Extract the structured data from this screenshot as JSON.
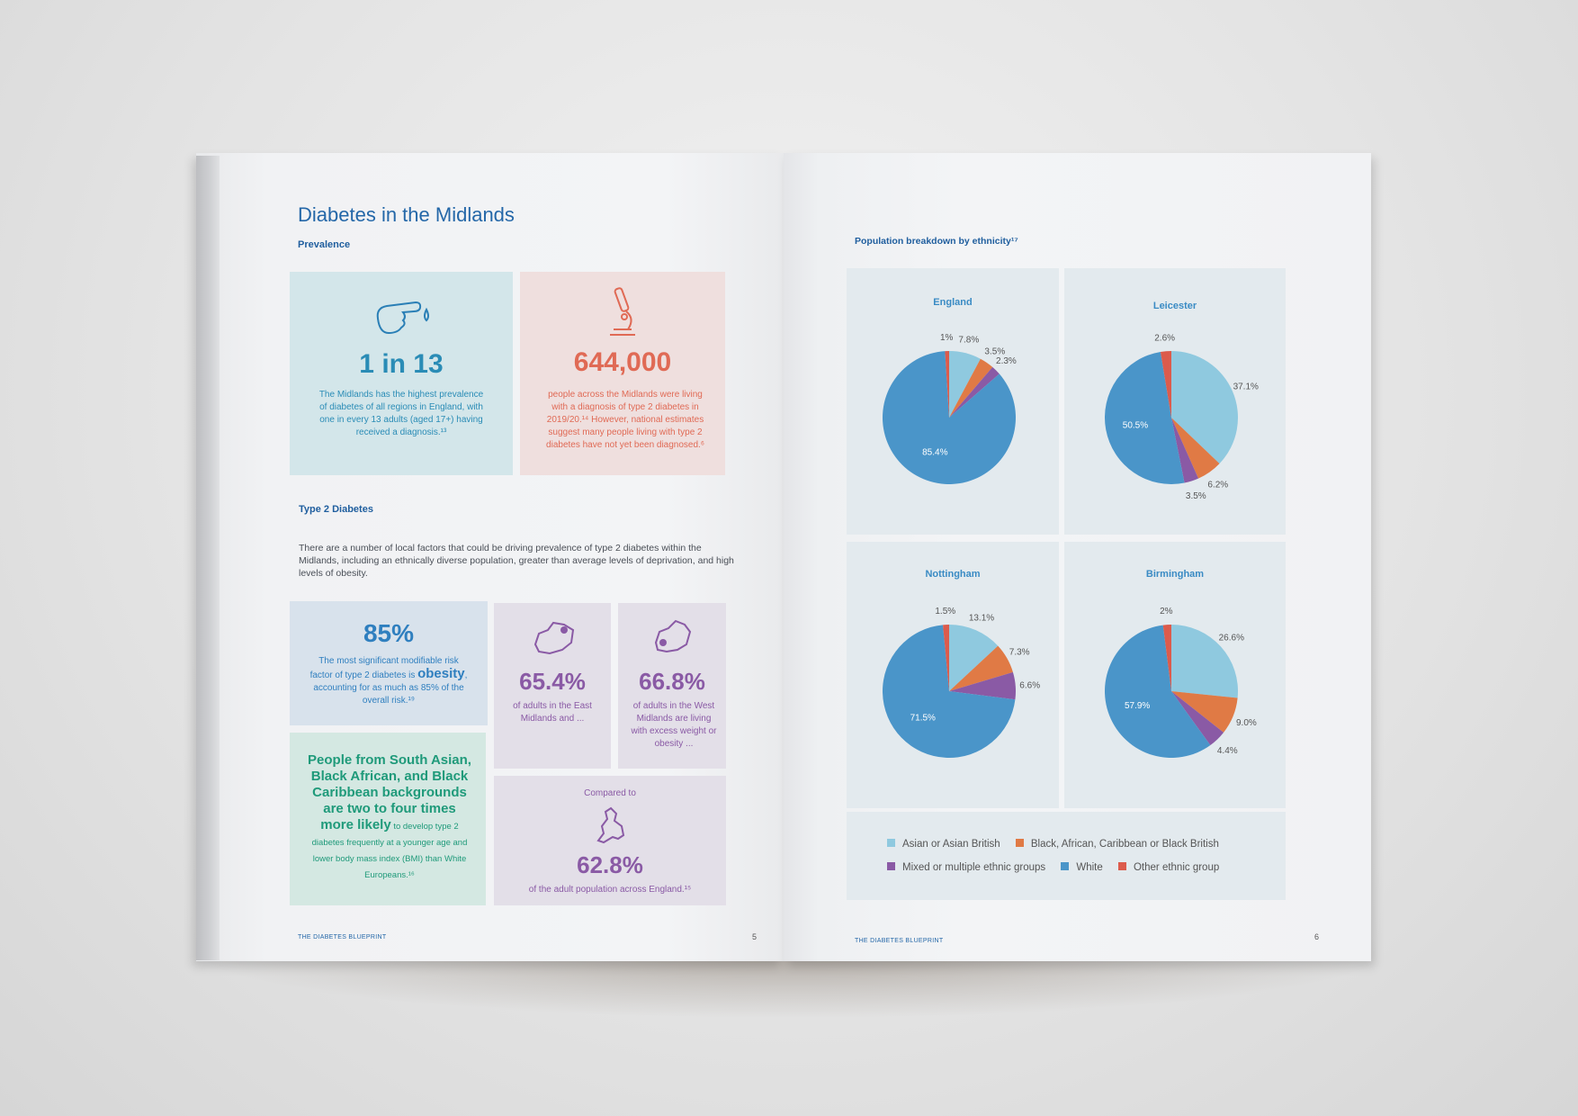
{
  "left_page": {
    "title": "Diabetes in the Midlands",
    "prevalence_heading": "Prevalence",
    "stat_1": {
      "value": "1 in 13",
      "text": "The Midlands has the highest prevalence of diabetes of all regions in England, with one in every 13 adults (aged 17+) having received a diagnosis.¹³",
      "icon": "finger-drop-icon",
      "color": "#2a8cb6"
    },
    "stat_2": {
      "value": "644,000",
      "text": "people across the Midlands were living with a diagnosis of type 2 diabetes in 2019/20.¹⁴ However, national estimates suggest many people living with type 2 diabetes have not yet been diagnosed.⁶",
      "icon": "microscope-icon",
      "color": "#e06a55"
    },
    "type2_heading": "Type 2 Diabetes",
    "type2_paragraph": "There are a number of local factors that could be driving prevalence of type 2 diabetes within the Midlands, including an ethnically diverse population, greater than average levels of deprivation, and high levels of obesity.",
    "stat_3": {
      "value": "85%",
      "text_1": "The most significant modifiable risk factor of type 2 diabetes is",
      "emphasis": "obesity",
      "text_2": ", accounting for as much as 85% of the overall risk.¹⁹",
      "color": "#2f7fbf"
    },
    "stat_4": {
      "value": "65.4%",
      "text": "of adults in the East Midlands and ...",
      "icon": "east-midlands-map-icon",
      "color": "#8a5aa5"
    },
    "stat_5": {
      "value": "66.8%",
      "text": "of adults in the West Midlands are living with excess weight or obesity ...",
      "icon": "west-midlands-map-icon",
      "color": "#8a5aa5"
    },
    "stat_6": {
      "bold": "People from South Asian, Black African, and Black Caribbean backgrounds are two to four times more likely",
      "text": " to develop type 2 diabetes frequently at a younger age and lower body mass index (BMI) than White Europeans.¹⁶",
      "color": "#1f9a7a"
    },
    "stat_7": {
      "label": "Compared to",
      "value": "62.8%",
      "text": "of the adult population across England.¹⁵",
      "icon": "england-map-icon",
      "color": "#8a5aa5"
    },
    "footer": "THE DIABETES BLUEPRINT",
    "page_number": "5"
  },
  "right_page": {
    "heading": "Population breakdown by ethnicity¹⁷",
    "footer": "THE DIABETES BLUEPRINT",
    "page_number": "6"
  },
  "chart_data": [
    {
      "type": "pie",
      "title": "England",
      "categories": [
        "Asian or Asian British",
        "Black, African, Caribbean or Black British",
        "Mixed or multiple ethnic groups",
        "White",
        "Other ethnic group"
      ],
      "values": [
        7.8,
        3.5,
        2.3,
        85.4,
        1
      ],
      "labels": [
        "7.8%",
        "3.5%",
        "2.3%",
        "85.4%",
        "1%"
      ]
    },
    {
      "type": "pie",
      "title": "Leicester",
      "categories": [
        "Asian or Asian British",
        "Black, African, Caribbean or Black British",
        "Mixed or multiple ethnic groups",
        "White",
        "Other ethnic group"
      ],
      "values": [
        37.1,
        6.2,
        3.5,
        50.5,
        2.6
      ],
      "labels": [
        "37.1%",
        "6.2%",
        "3.5%",
        "50.5%",
        "2.6%"
      ]
    },
    {
      "type": "pie",
      "title": "Nottingham",
      "categories": [
        "Asian or Asian British",
        "Black, African, Caribbean or Black British",
        "Mixed or multiple ethnic groups",
        "White",
        "Other ethnic group"
      ],
      "values": [
        13.1,
        7.3,
        6.6,
        71.5,
        1.5
      ],
      "labels": [
        "13.1%",
        "7.3%",
        "6.6%",
        "71.5%",
        "1.5%"
      ]
    },
    {
      "type": "pie",
      "title": "Birmingham",
      "categories": [
        "Asian or Asian British",
        "Black, African, Caribbean or Black British",
        "Mixed or multiple ethnic groups",
        "White",
        "Other ethnic group"
      ],
      "values": [
        26.6,
        9.0,
        4.4,
        57.9,
        2
      ],
      "labels": [
        "26.6%",
        "9.0%",
        "4.4%",
        "57.9%",
        "2%"
      ]
    }
  ],
  "legend": {
    "items": [
      {
        "label": "Asian or Asian British",
        "color": "#8fc9df"
      },
      {
        "label": "Black, African, Caribbean or Black British",
        "color": "#e07a45"
      },
      {
        "label": "Mixed or multiple ethnic groups",
        "color": "#8a5aa5"
      },
      {
        "label": "White",
        "color": "#4a95c9"
      },
      {
        "label": "Other ethnic group",
        "color": "#dc5b4c"
      }
    ]
  }
}
